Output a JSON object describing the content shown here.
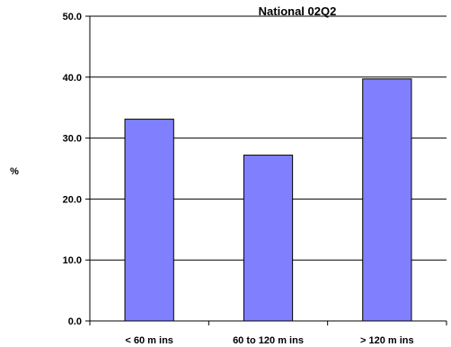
{
  "chart_data": {
    "type": "bar",
    "title": "National 02Q2",
    "ylabel": "%",
    "xlabel": "",
    "categories": [
      "< 60 m ins",
      "60 to 120 m ins",
      "> 120 m ins"
    ],
    "values": [
      33.1,
      27.2,
      39.7
    ],
    "ylim": [
      0,
      50
    ],
    "yticks": [
      0,
      10,
      20,
      30,
      40,
      50
    ],
    "ytick_labels": [
      "0.0",
      "10.0",
      "20.0",
      "30.0",
      "40.0",
      "50.0"
    ],
    "grid": true,
    "legend": "none",
    "colors": {
      "bar_fill": "#8080ff",
      "bar_stroke": "#000000",
      "grid": "#000000",
      "axis": "#000000"
    }
  }
}
